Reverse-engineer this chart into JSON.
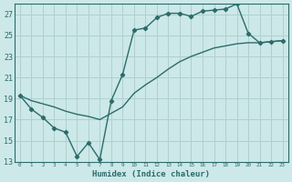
{
  "xlabel": "Humidex (Indice chaleur)",
  "background_color": "#cce8e8",
  "grid_color": "#b0d0d0",
  "line_color": "#2d6b6b",
  "x_min": -0.5,
  "x_max": 23.5,
  "y_min": 13,
  "y_max": 28,
  "yticks": [
    13,
    15,
    17,
    19,
    21,
    23,
    25,
    27
  ],
  "xticks": [
    0,
    1,
    2,
    3,
    4,
    5,
    6,
    7,
    8,
    9,
    10,
    11,
    12,
    13,
    14,
    15,
    16,
    17,
    18,
    19,
    20,
    21,
    22,
    23
  ],
  "line1_x": [
    0,
    1,
    2,
    3,
    4,
    5,
    6,
    7,
    8,
    9,
    10,
    11,
    12,
    13,
    14,
    15,
    16,
    17,
    18,
    19,
    20,
    21,
    22,
    23
  ],
  "line1_y": [
    19.3,
    18.0,
    17.2,
    16.2,
    15.8,
    13.5,
    14.8,
    13.2,
    18.8,
    21.3,
    25.5,
    25.7,
    26.7,
    27.1,
    27.1,
    26.8,
    27.3,
    27.4,
    27.5,
    28.0,
    25.2,
    24.3,
    24.4,
    24.5
  ],
  "line2_x": [
    0,
    1,
    2,
    3,
    4,
    5,
    6,
    7,
    8,
    9,
    10,
    11,
    12,
    13,
    14,
    15,
    16,
    17,
    18,
    19,
    20,
    21,
    22,
    23
  ],
  "line2_y": [
    19.3,
    18.8,
    18.5,
    18.2,
    17.8,
    17.5,
    17.3,
    17.0,
    17.6,
    18.2,
    19.5,
    20.3,
    21.0,
    21.8,
    22.5,
    23.0,
    23.4,
    23.8,
    24.0,
    24.2,
    24.3,
    24.3,
    24.4,
    24.5
  ]
}
